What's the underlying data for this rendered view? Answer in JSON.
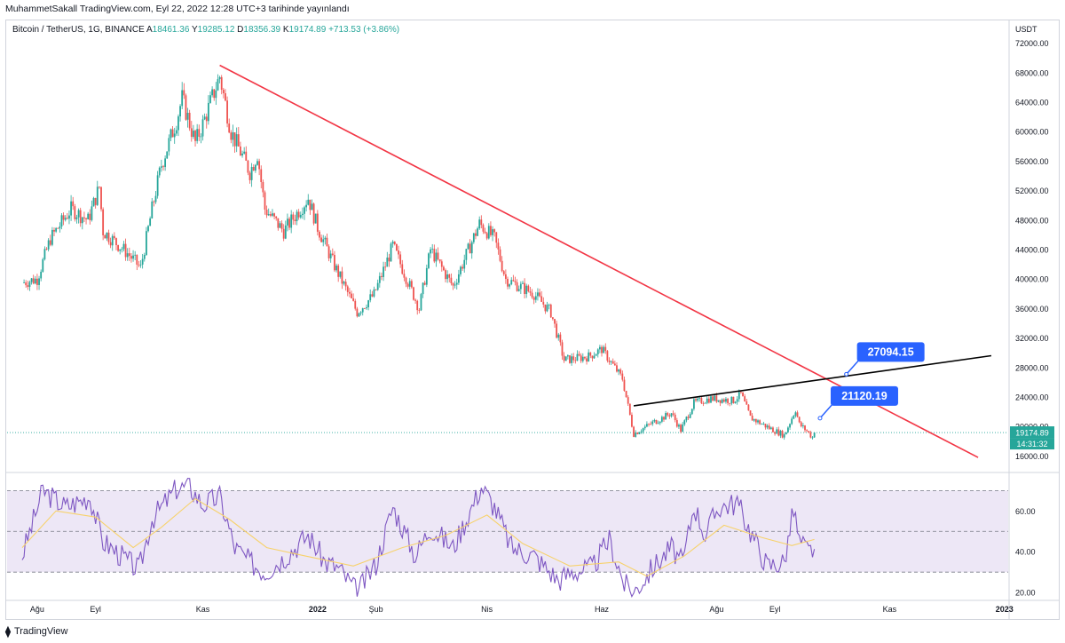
{
  "header": "MuhammetSakall TradingView.com, Eyl 22, 2022 12:28 UTC+3 tarihinde yayınlandı",
  "legend": {
    "symbol": "Bitcoin / TetherUS, 1G, BINANCE",
    "o_label": "A",
    "o": "18461.36",
    "h_label": "Y",
    "h": "19285.12",
    "l_label": "D",
    "l": "18356.39",
    "c_label": "K",
    "c": "19174.89",
    "change": "+713.53 (+3.86%)"
  },
  "footer": {
    "brand": "TradingView"
  },
  "colors": {
    "up": "#26a69a",
    "down": "#ef5350",
    "trendline_down": "#f23645",
    "trendline_up": "#000000",
    "callout": "#2962ff",
    "rsi": "#7e57c2",
    "rsi_ma": "#f7d26b",
    "rsi_band": "#ede7f6"
  },
  "chart_data": [
    {
      "type": "candlestick",
      "title": "Bitcoin / TetherUS, 1G, BINANCE",
      "currency_label": "USDT",
      "y_ticks": [
        "72000.00",
        "68000.00",
        "64000.00",
        "60000.00",
        "56000.00",
        "52000.00",
        "48000.00",
        "44000.00",
        "40000.00",
        "36000.00",
        "32000.00",
        "28000.00",
        "24000.00",
        "20000.00",
        "16000.00"
      ],
      "ylim": [
        14000,
        74000
      ],
      "x_ticks": [
        "Ağu",
        "Eyl",
        "Kas",
        "2022",
        "Şub",
        "Nis",
        "Haz",
        "Ağu",
        "Eyl",
        "Kas",
        "2023"
      ],
      "close_path": [
        [
          "2021-07-28",
          39500
        ],
        [
          "2021-08-05",
          40000
        ],
        [
          "2021-08-12",
          45500
        ],
        [
          "2021-08-23",
          49500
        ],
        [
          "2021-09-01",
          48000
        ],
        [
          "2021-09-07",
          52500
        ],
        [
          "2021-09-09",
          46500
        ],
        [
          "2021-09-22",
          43500
        ],
        [
          "2021-09-29",
          41500
        ],
        [
          "2021-10-05",
          49500
        ],
        [
          "2021-10-10",
          55500
        ],
        [
          "2021-10-18",
          61500
        ],
        [
          "2021-10-21",
          64500
        ],
        [
          "2021-10-28",
          58500
        ],
        [
          "2021-11-01",
          61000
        ],
        [
          "2021-11-10",
          67500
        ],
        [
          "2021-11-16",
          60000
        ],
        [
          "2021-11-26",
          54500
        ],
        [
          "2021-11-30",
          57000
        ],
        [
          "2021-12-04",
          49500
        ],
        [
          "2021-12-14",
          46500
        ],
        [
          "2021-12-27",
          51000
        ],
        [
          "2022-01-01",
          47000
        ],
        [
          "2022-01-10",
          41800
        ],
        [
          "2022-01-22",
          35500
        ],
        [
          "2022-01-31",
          37900
        ],
        [
          "2022-02-10",
          44500
        ],
        [
          "2022-02-24",
          36000
        ],
        [
          "2022-03-02",
          44000
        ],
        [
          "2022-03-14",
          39000
        ],
        [
          "2022-03-28",
          47500
        ],
        [
          "2022-04-05",
          45500
        ],
        [
          "2022-04-11",
          40000
        ],
        [
          "2022-04-26",
          38000
        ],
        [
          "2022-05-05",
          35500
        ],
        [
          "2022-05-12",
          29000
        ],
        [
          "2022-05-25",
          29500
        ],
        [
          "2022-06-01",
          30500
        ],
        [
          "2022-06-12",
          26500
        ],
        [
          "2022-06-18",
          19000
        ],
        [
          "2022-06-28",
          20500
        ],
        [
          "2022-07-08",
          21800
        ],
        [
          "2022-07-13",
          19500
        ],
        [
          "2022-07-20",
          23200
        ],
        [
          "2022-07-29",
          23800
        ],
        [
          "2022-08-10",
          23500
        ],
        [
          "2022-08-14",
          24400
        ],
        [
          "2022-08-19",
          21200
        ],
        [
          "2022-08-29",
          19800
        ],
        [
          "2022-09-06",
          18800
        ],
        [
          "2022-09-12",
          22300
        ],
        [
          "2022-09-14",
          20300
        ],
        [
          "2022-09-18",
          19400
        ],
        [
          "2022-09-21",
          18500
        ],
        [
          "2022-09-22",
          19174.89
        ]
      ],
      "trendlines": [
        {
          "name": "falling resistance",
          "color": "#f23645",
          "from": [
            "2021-11-10",
            69000
          ],
          "to": [
            "2022-12-18",
            15800
          ]
        },
        {
          "name": "rising resistance",
          "color": "#000000",
          "from": [
            "2022-06-18",
            22800
          ],
          "to": [
            "2022-12-25",
            29600
          ]
        }
      ],
      "price_labels": [
        {
          "text": "27094.15",
          "at": [
            "2022-10-09",
            27094.15
          ]
        },
        {
          "text": "21120.19",
          "at": [
            "2022-09-25",
            21120.19
          ]
        }
      ],
      "last_price": "19174.89",
      "countdown": "14:31:32",
      "last_value": 19174.89
    },
    {
      "type": "line",
      "title": "",
      "y_ticks": [
        "60.00",
        "40.00",
        "20.00"
      ],
      "ylim": [
        17,
        78
      ],
      "bands": [
        70,
        50,
        30
      ],
      "series_points": [
        [
          "2021-07-28",
          38
        ],
        [
          "2021-08-08",
          70
        ],
        [
          "2021-08-20",
          62
        ],
        [
          "2021-09-02",
          67
        ],
        [
          "2021-09-09",
          45
        ],
        [
          "2021-09-20",
          37
        ],
        [
          "2021-09-28",
          31
        ],
        [
          "2021-10-05",
          56
        ],
        [
          "2021-10-18",
          71
        ],
        [
          "2021-10-25",
          72
        ],
        [
          "2021-11-01",
          63
        ],
        [
          "2021-11-10",
          67
        ],
        [
          "2021-11-18",
          42
        ],
        [
          "2021-11-26",
          35
        ],
        [
          "2021-12-04",
          30
        ],
        [
          "2021-12-14",
          37
        ],
        [
          "2021-12-27",
          48
        ],
        [
          "2022-01-05",
          35
        ],
        [
          "2022-01-12",
          32
        ],
        [
          "2022-01-22",
          20
        ],
        [
          "2022-02-01",
          34
        ],
        [
          "2022-02-10",
          62
        ],
        [
          "2022-02-22",
          38
        ],
        [
          "2022-03-02",
          52
        ],
        [
          "2022-03-14",
          42
        ],
        [
          "2022-03-29",
          72
        ],
        [
          "2022-04-05",
          62
        ],
        [
          "2022-04-14",
          42
        ],
        [
          "2022-04-26",
          38
        ],
        [
          "2022-05-09",
          26
        ],
        [
          "2022-05-16",
          30
        ],
        [
          "2022-05-27",
          32
        ],
        [
          "2022-06-05",
          46
        ],
        [
          "2022-06-13",
          24
        ],
        [
          "2022-06-18",
          20
        ],
        [
          "2022-06-28",
          32
        ],
        [
          "2022-07-08",
          42
        ],
        [
          "2022-07-14",
          34
        ],
        [
          "2022-07-20",
          63
        ],
        [
          "2022-07-26",
          48
        ],
        [
          "2022-08-02",
          62
        ],
        [
          "2022-08-12",
          64
        ],
        [
          "2022-08-20",
          48
        ],
        [
          "2022-08-28",
          33
        ],
        [
          "2022-09-06",
          35
        ],
        [
          "2022-09-11",
          61
        ],
        [
          "2022-09-14",
          45
        ],
        [
          "2022-09-19",
          40
        ],
        [
          "2022-09-22",
          42
        ]
      ],
      "ma_points": [
        [
          "2021-07-28",
          42
        ],
        [
          "2021-08-15",
          60
        ],
        [
          "2021-09-05",
          57
        ],
        [
          "2021-09-25",
          42
        ],
        [
          "2021-10-10",
          52
        ],
        [
          "2021-10-28",
          66
        ],
        [
          "2021-11-15",
          56
        ],
        [
          "2021-12-05",
          42
        ],
        [
          "2021-12-25",
          38
        ],
        [
          "2022-01-20",
          33
        ],
        [
          "2022-02-15",
          42
        ],
        [
          "2022-03-10",
          48
        ],
        [
          "2022-04-01",
          58
        ],
        [
          "2022-04-20",
          44
        ],
        [
          "2022-05-15",
          33
        ],
        [
          "2022-06-10",
          35
        ],
        [
          "2022-06-25",
          28
        ],
        [
          "2022-07-15",
          38
        ],
        [
          "2022-08-05",
          53
        ],
        [
          "2022-08-25",
          47
        ],
        [
          "2022-09-10",
          43
        ],
        [
          "2022-09-22",
          46
        ]
      ]
    }
  ]
}
